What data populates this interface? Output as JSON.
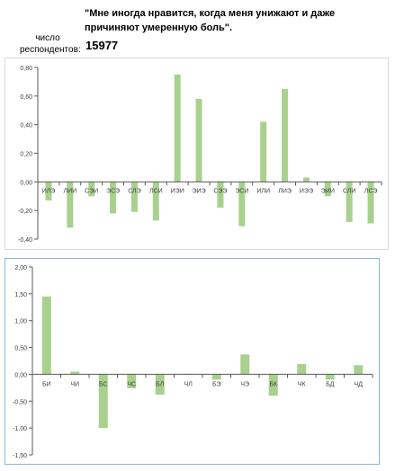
{
  "header": {
    "question": "\"Мне иногда нравится, когда меня унижают и даже причиняют умеренную боль\".",
    "respondents_label": "число респондентов:",
    "respondents_value": "15977"
  },
  "colors": {
    "bar": "#a9d18e",
    "axis": "#595959",
    "grid": "#d9d9d9"
  },
  "chart_data": [
    {
      "type": "bar",
      "categories": [
        "ИЛЭ",
        "ЛИИ",
        "СЭИ",
        "ЭСЭ",
        "СЛЭ",
        "ЛСИ",
        "ИЭИ",
        "ЭИЭ",
        "СЭЭ",
        "ЭСИ",
        "ИЛИ",
        "ЛИЭ",
        "ИЭЭ",
        "ЭИИ",
        "СЛИ",
        "ЛСЭ"
      ],
      "values": [
        -0.13,
        -0.32,
        -0.1,
        -0.22,
        -0.21,
        -0.27,
        0.75,
        0.58,
        -0.18,
        -0.31,
        0.42,
        0.65,
        0.03,
        -0.1,
        -0.28,
        -0.29
      ],
      "ylim": [
        -0.4,
        0.8
      ],
      "yticks": [
        "-0,40",
        "-0,20",
        "0,00",
        "0,20",
        "0,40",
        "0,60",
        "0,80"
      ],
      "ytick_values": [
        -0.4,
        -0.2,
        0,
        0.2,
        0.4,
        0.6,
        0.8
      ],
      "grid": false
    },
    {
      "type": "bar",
      "categories": [
        "БИ",
        "ЧИ",
        "БС",
        "ЧС",
        "БЛ",
        "ЧЛ",
        "БЭ",
        "ЧЭ",
        "БК",
        "ЧК",
        "БД",
        "ЧД"
      ],
      "values": [
        1.45,
        0.05,
        -1.0,
        -0.26,
        -0.38,
        0.01,
        -0.1,
        0.37,
        -0.4,
        0.19,
        -0.1,
        0.17
      ],
      "ylim": [
        -1.5,
        2.0
      ],
      "yticks": [
        "-1,50",
        "-1,00",
        "-0,50",
        "0,00",
        "0,50",
        "1,00",
        "1,50",
        "2,00"
      ],
      "ytick_values": [
        -1.5,
        -1.0,
        -0.5,
        0,
        0.5,
        1.0,
        1.5,
        2.0
      ],
      "grid": false
    }
  ]
}
